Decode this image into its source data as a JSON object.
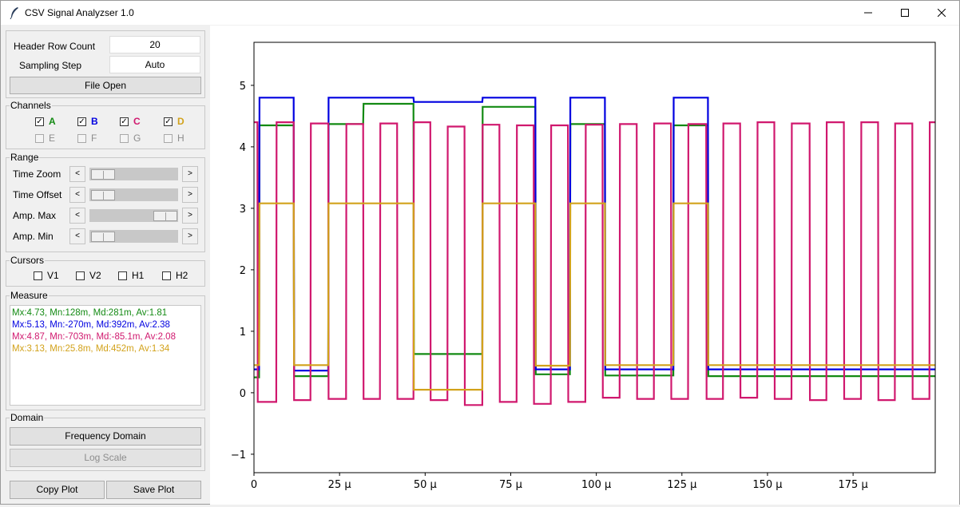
{
  "window": {
    "title": "CSV Signal Analyzser 1.0"
  },
  "settings": {
    "header_row_label": "Header Row Count",
    "header_row_value": "20",
    "sampling_label": "Sampling Step",
    "sampling_value": "Auto",
    "file_open": "File Open"
  },
  "channels": {
    "label": "Channels",
    "items": [
      {
        "name": "A",
        "checked": true,
        "enabled": true,
        "color": "#138a13"
      },
      {
        "name": "B",
        "checked": true,
        "enabled": true,
        "color": "#0000e0"
      },
      {
        "name": "C",
        "checked": true,
        "enabled": true,
        "color": "#d0186e"
      },
      {
        "name": "D",
        "checked": true,
        "enabled": true,
        "color": "#d2a21b"
      },
      {
        "name": "E",
        "checked": false,
        "enabled": false,
        "color": "#8d8d8d"
      },
      {
        "name": "F",
        "checked": false,
        "enabled": false,
        "color": "#8d8d8d"
      },
      {
        "name": "G",
        "checked": false,
        "enabled": false,
        "color": "#8d8d8d"
      },
      {
        "name": "H",
        "checked": false,
        "enabled": false,
        "color": "#8d8d8d"
      }
    ]
  },
  "range": {
    "label": "Range",
    "rows": [
      {
        "label": "Time Zoom",
        "level": 0.0
      },
      {
        "label": "Time Offset",
        "level": 0.0
      },
      {
        "label": "Amp. Max",
        "level": 1.0
      },
      {
        "label": "Amp. Min",
        "level": 0.0
      }
    ]
  },
  "cursors": {
    "label": "Cursors",
    "items": [
      "V1",
      "V2",
      "H1",
      "H2"
    ]
  },
  "measure": {
    "label": "Measure",
    "lines": [
      {
        "text": "Mx:4.73,  Mn:128m,  Md:281m,  Av:1.81",
        "color": "#138a13"
      },
      {
        "text": "Mx:5.13,  Mn:-270m,  Md:392m,  Av:2.38",
        "color": "#0000e0"
      },
      {
        "text": "Mx:4.87,  Mn:-703m,  Md:-85.1m,  Av:2.08",
        "color": "#d0186e"
      },
      {
        "text": "Mx:3.13,  Mn:25.8m,  Md:452m,  Av:1.34",
        "color": "#d2a21b"
      }
    ]
  },
  "domain": {
    "label": "Domain",
    "freq": "Frequency Domain",
    "log": "Log Scale"
  },
  "bottom": {
    "copy": "Copy Plot",
    "save": "Save Plot"
  },
  "chart_data": {
    "type": "line",
    "title": "",
    "xlabel": "",
    "ylabel": "",
    "xlim": [
      0,
      199
    ],
    "ylim": [
      -1.3,
      5.7
    ],
    "x_ticks": [
      0,
      25,
      50,
      75,
      100,
      125,
      150,
      175
    ],
    "x_tick_labels": [
      "0",
      "25 µ",
      "50 µ",
      "75 µ",
      "100 µ",
      "125 µ",
      "150 µ",
      "175 µ"
    ],
    "y_ticks": [
      -1,
      0,
      1,
      2,
      3,
      4,
      5
    ],
    "y_tick_labels": [
      "−1",
      "0",
      "1",
      "2",
      "3",
      "4",
      "5"
    ],
    "series": [
      {
        "color": "#138a13",
        "points": [
          [
            0,
            0.25
          ],
          [
            1.5,
            0.25
          ],
          [
            1.6,
            4.35
          ],
          [
            11.6,
            4.35
          ],
          [
            11.7,
            0.27
          ],
          [
            21.7,
            0.27
          ],
          [
            21.8,
            4.37
          ],
          [
            31.9,
            4.37
          ],
          [
            32,
            4.7
          ],
          [
            46.6,
            4.7
          ],
          [
            46.7,
            0.63
          ],
          [
            66.7,
            0.63
          ],
          [
            66.8,
            4.65
          ],
          [
            82.2,
            4.65
          ],
          [
            82.3,
            0.3
          ],
          [
            92.3,
            0.3
          ],
          [
            92.4,
            4.37
          ],
          [
            102.5,
            4.37
          ],
          [
            102.6,
            0.28
          ],
          [
            122.5,
            0.28
          ],
          [
            122.6,
            4.35
          ],
          [
            132.6,
            4.35
          ],
          [
            132.7,
            0.27
          ],
          [
            199,
            0.27
          ]
        ]
      },
      {
        "color": "#0000e0",
        "points": [
          [
            0,
            0.38
          ],
          [
            1.5,
            0.38
          ],
          [
            1.6,
            4.8
          ],
          [
            11.6,
            4.8
          ],
          [
            11.7,
            0.36
          ],
          [
            21.7,
            0.36
          ],
          [
            21.8,
            4.8
          ],
          [
            46.6,
            4.8
          ],
          [
            46.7,
            4.73
          ],
          [
            66.7,
            4.73
          ],
          [
            66.8,
            4.8
          ],
          [
            82.2,
            4.8
          ],
          [
            82.3,
            0.38
          ],
          [
            92.3,
            0.38
          ],
          [
            92.4,
            4.8
          ],
          [
            102.5,
            4.8
          ],
          [
            102.6,
            0.38
          ],
          [
            122.5,
            0.38
          ],
          [
            122.6,
            4.8
          ],
          [
            132.6,
            4.8
          ],
          [
            132.7,
            0.38
          ],
          [
            199,
            0.38
          ]
        ]
      },
      {
        "color": "#d0186e",
        "points": [
          [
            0,
            4.4
          ],
          [
            1,
            4.4
          ],
          [
            1.1,
            -0.15
          ],
          [
            6.5,
            -0.15
          ],
          [
            6.6,
            4.4
          ],
          [
            11.6,
            4.4
          ],
          [
            11.7,
            -0.12
          ],
          [
            16.5,
            -0.12
          ],
          [
            16.6,
            4.38
          ],
          [
            21.7,
            4.38
          ],
          [
            21.8,
            -0.1
          ],
          [
            26.9,
            -0.1
          ],
          [
            27,
            4.37
          ],
          [
            31.9,
            4.37
          ],
          [
            32,
            -0.1
          ],
          [
            36.8,
            -0.1
          ],
          [
            36.9,
            4.38
          ],
          [
            41.8,
            4.38
          ],
          [
            41.9,
            -0.1
          ],
          [
            46.6,
            -0.1
          ],
          [
            46.7,
            4.4
          ],
          [
            51.5,
            4.4
          ],
          [
            51.6,
            -0.12
          ],
          [
            56.5,
            -0.12
          ],
          [
            56.6,
            4.33
          ],
          [
            61.5,
            4.33
          ],
          [
            61.6,
            -0.2
          ],
          [
            66.7,
            -0.2
          ],
          [
            66.8,
            4.36
          ],
          [
            71.7,
            4.36
          ],
          [
            71.8,
            -0.15
          ],
          [
            76.7,
            -0.15
          ],
          [
            76.8,
            4.35
          ],
          [
            81.7,
            4.35
          ],
          [
            81.8,
            -0.18
          ],
          [
            86.7,
            -0.18
          ],
          [
            86.8,
            4.35
          ],
          [
            91.7,
            4.35
          ],
          [
            91.8,
            -0.15
          ],
          [
            96.8,
            -0.15
          ],
          [
            96.9,
            4.36
          ],
          [
            101.8,
            4.36
          ],
          [
            101.9,
            -0.08
          ],
          [
            106.8,
            -0.08
          ],
          [
            106.9,
            4.37
          ],
          [
            111.8,
            4.37
          ],
          [
            111.9,
            -0.1
          ],
          [
            116.8,
            -0.1
          ],
          [
            116.9,
            4.38
          ],
          [
            121.8,
            4.38
          ],
          [
            121.9,
            -0.1
          ],
          [
            126.8,
            -0.1
          ],
          [
            126.9,
            4.37
          ],
          [
            132.1,
            4.37
          ],
          [
            132.2,
            -0.1
          ],
          [
            137,
            -0.1
          ],
          [
            137.1,
            4.38
          ],
          [
            142,
            4.38
          ],
          [
            142.1,
            -0.08
          ],
          [
            147,
            -0.08
          ],
          [
            147.1,
            4.4
          ],
          [
            152,
            4.4
          ],
          [
            152.1,
            -0.1
          ],
          [
            157,
            -0.1
          ],
          [
            157.1,
            4.38
          ],
          [
            162.3,
            4.38
          ],
          [
            162.4,
            -0.12
          ],
          [
            167.2,
            -0.12
          ],
          [
            167.3,
            4.4
          ],
          [
            172.3,
            4.4
          ],
          [
            172.4,
            -0.1
          ],
          [
            177.3,
            -0.1
          ],
          [
            177.4,
            4.4
          ],
          [
            182.3,
            4.4
          ],
          [
            182.4,
            -0.12
          ],
          [
            187.2,
            -0.12
          ],
          [
            187.3,
            4.38
          ],
          [
            192.3,
            4.38
          ],
          [
            192.4,
            -0.1
          ],
          [
            197.3,
            -0.1
          ],
          [
            197.4,
            4.4
          ],
          [
            199,
            4.4
          ]
        ]
      },
      {
        "color": "#d2a21b",
        "points": [
          [
            0,
            0.45
          ],
          [
            1.5,
            0.45
          ],
          [
            1.6,
            3.08
          ],
          [
            11.6,
            3.08
          ],
          [
            11.7,
            0.45
          ],
          [
            21.7,
            0.45
          ],
          [
            21.8,
            3.08
          ],
          [
            46.6,
            3.08
          ],
          [
            46.7,
            0.05
          ],
          [
            66.7,
            0.05
          ],
          [
            66.8,
            3.08
          ],
          [
            82.2,
            3.08
          ],
          [
            82.3,
            0.44
          ],
          [
            92.3,
            0.44
          ],
          [
            92.4,
            3.08
          ],
          [
            102.5,
            3.08
          ],
          [
            102.6,
            0.45
          ],
          [
            122.5,
            0.45
          ],
          [
            122.6,
            3.08
          ],
          [
            132.6,
            3.08
          ],
          [
            132.7,
            0.45
          ],
          [
            199,
            0.45
          ]
        ]
      }
    ]
  }
}
